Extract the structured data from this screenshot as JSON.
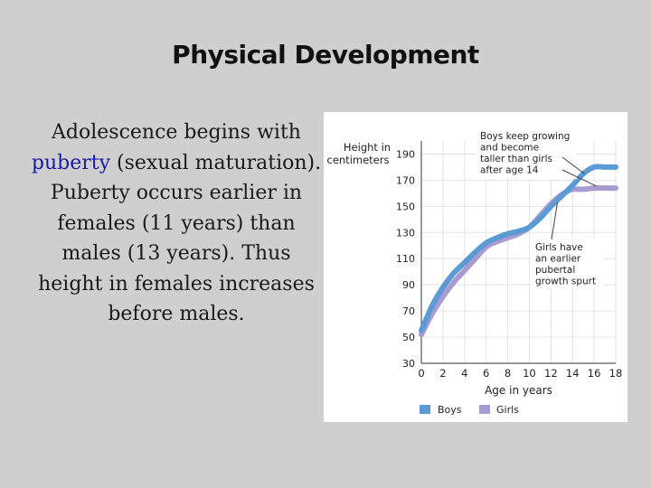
{
  "slide": {
    "title": "Physical Development",
    "body_before": "Adolescence begins with ",
    "body_highlight": "puberty",
    "body_after": " (sexual maturation). Puberty occurs earlier in females (11 years) than males (13 years). Thus height in females increases before males."
  },
  "colors": {
    "boys": "#5b9bd5",
    "girls": "#a79bd0",
    "highlight": "#1a1aa8"
  },
  "chart_data": {
    "type": "line",
    "title": "",
    "xlabel": "Age in years",
    "ylabel_line1": "Height in",
    "ylabel_line2": "centimeters",
    "xlim": [
      0,
      18
    ],
    "ylim": [
      30,
      200
    ],
    "x_ticks": [
      0,
      2,
      4,
      6,
      8,
      10,
      12,
      14,
      16,
      18
    ],
    "y_ticks": [
      30,
      50,
      70,
      90,
      110,
      130,
      150,
      170,
      190
    ],
    "grid": true,
    "legend_position": "bottom",
    "series": [
      {
        "name": "Boys",
        "x": [
          0,
          1,
          2,
          3,
          4,
          5,
          6,
          7,
          8,
          9,
          10,
          11,
          12,
          13,
          14,
          15,
          16,
          17,
          18
        ],
        "y": [
          55,
          74,
          88,
          99,
          107,
          115,
          122,
          126,
          129,
          131,
          134,
          141,
          150,
          158,
          166,
          175,
          180,
          180,
          180
        ]
      },
      {
        "name": "Girls",
        "x": [
          0,
          1,
          2,
          3,
          4,
          5,
          6,
          7,
          8,
          9,
          10,
          11,
          12,
          13,
          14,
          15,
          16,
          17,
          18
        ],
        "y": [
          52,
          68,
          81,
          92,
          101,
          110,
          119,
          123,
          126,
          129,
          134,
          143,
          152,
          159,
          163,
          163,
          164,
          164,
          164
        ]
      }
    ],
    "annotations": [
      {
        "lines": [
          "Boys keep growing",
          "and become",
          "taller than girls",
          "after age 14"
        ]
      },
      {
        "lines": [
          "Girls have",
          "an earlier",
          "pubertal",
          "growth spurt"
        ]
      }
    ]
  }
}
